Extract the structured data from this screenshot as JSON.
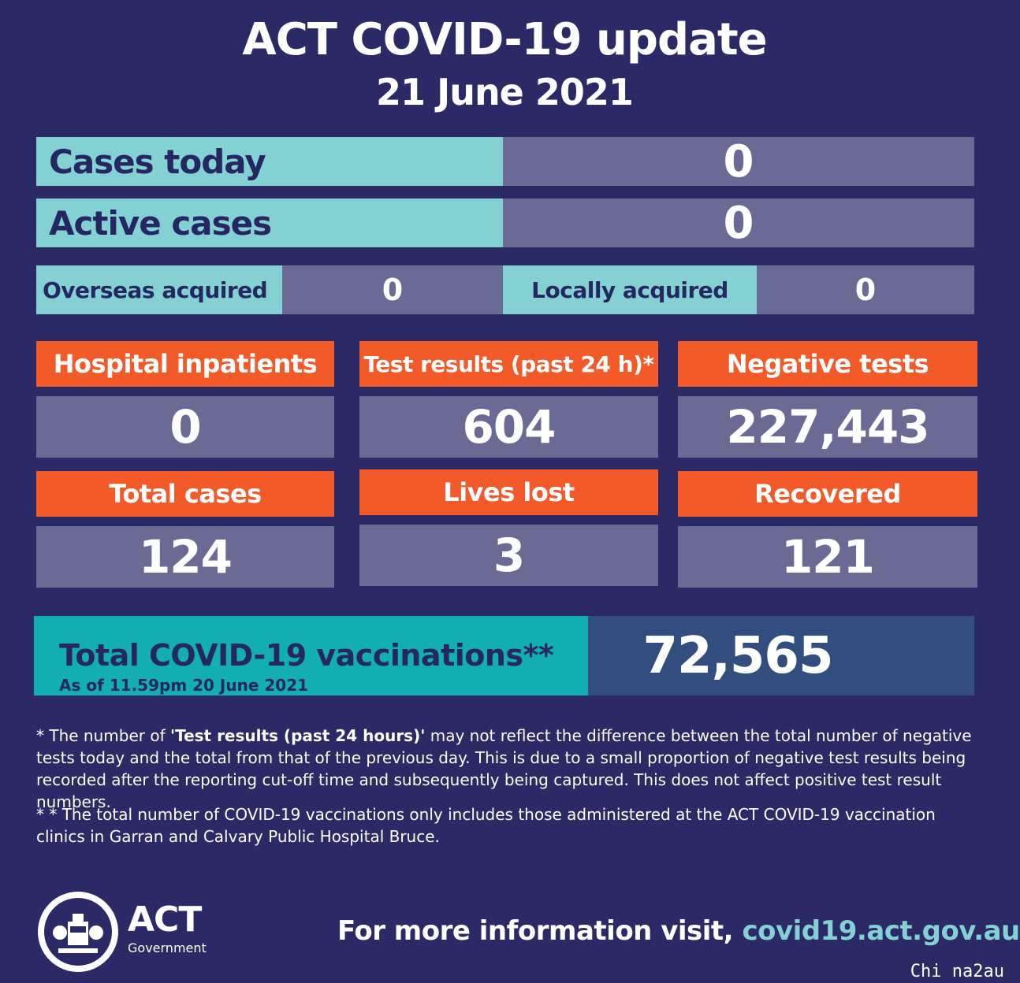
{
  "header": {
    "title": "ACT COVID-19 update",
    "date": "21 June 2021"
  },
  "summary_rows": [
    {
      "label": "Cases today",
      "value": "0"
    },
    {
      "label": "Active cases",
      "value": "0"
    }
  ],
  "acquired": {
    "overseas_label": "Overseas acquired",
    "overseas_value": "0",
    "local_label": "Locally acquired",
    "local_value": "0"
  },
  "tiles": [
    {
      "label": "Hospital inpatients",
      "value": "0"
    },
    {
      "label": "Test results (past 24 h)*",
      "value": "604"
    },
    {
      "label": "Negative tests",
      "value": "227,443"
    },
    {
      "label": "Total cases",
      "value": "124"
    },
    {
      "label": "Lives lost",
      "value": "3"
    },
    {
      "label": "Recovered",
      "value": "121"
    }
  ],
  "vaccinations": {
    "label": "Total COVID-19 vaccinations**",
    "sub": "As of 11.59pm 20 June 2021",
    "value": "72,565"
  },
  "notes": {
    "note1_prefix": "* The number of ",
    "note1_bold": "'Test results (past 24 hours)'",
    "note1_rest": " may not reflect the difference between the total number of negative tests today and the total from that of the previous day. This is due to a small proportion of negative test results being recorded after the reporting cut-off time and subsequently being captured. This does not affect positive test result numbers.",
    "note2": "* * The total number of COVID-19 vaccinations only includes those administered at the ACT COVID-19 vaccination clinics in Garran and Calvary Public Hospital Bruce."
  },
  "footer": {
    "logo_text": "ACT",
    "logo_sub": "Government",
    "more_info": "For more information visit, ",
    "link": "covid19.act.gov.au"
  },
  "watermark": "Chi na2au",
  "colors": {
    "background": "#2b2a66",
    "teal": "#84d1d3",
    "slate": "#6b6a95",
    "orange": "#f25a2a",
    "vacc_teal": "#13aeb0",
    "vacc_blue": "#324e7e"
  }
}
